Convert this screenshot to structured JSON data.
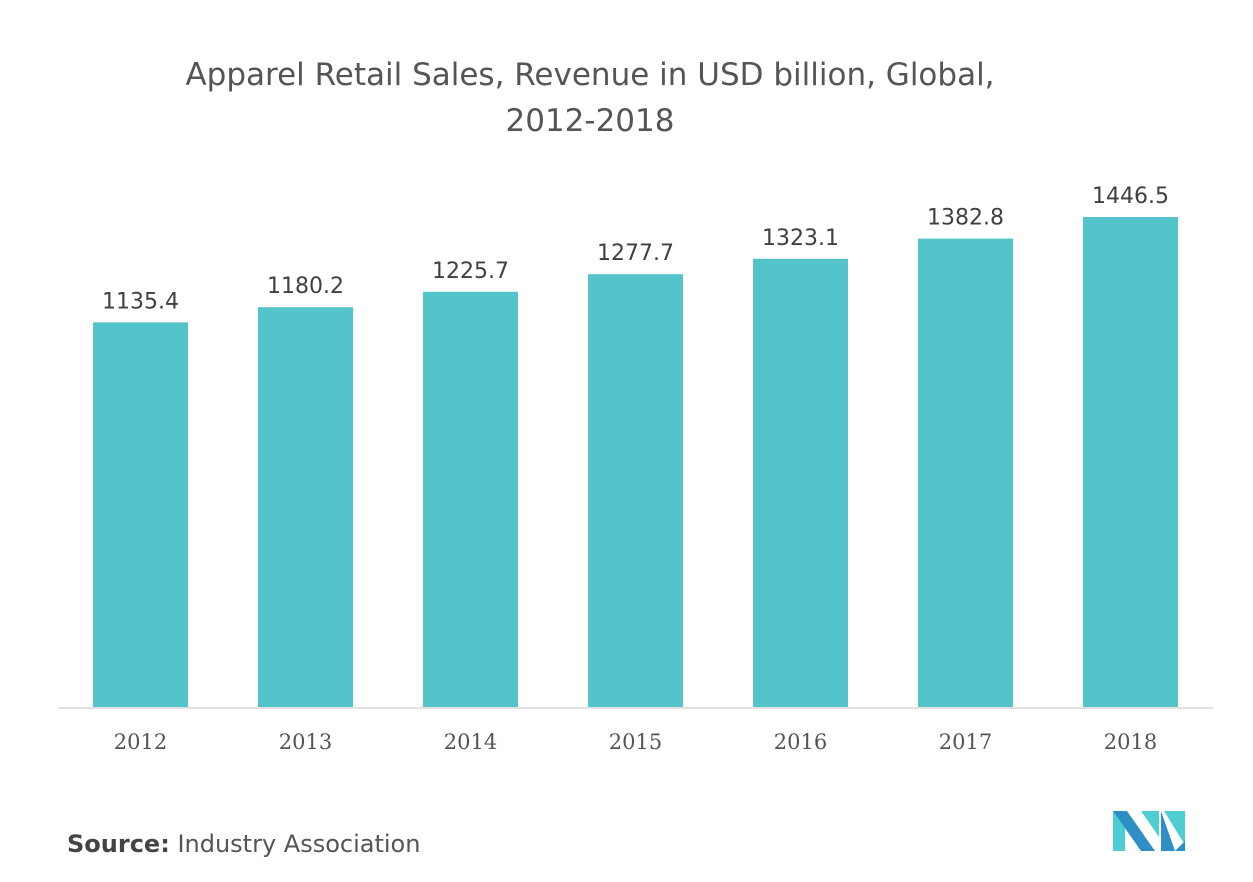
{
  "chart_data": {
    "type": "bar",
    "title": "Apparel Retail Sales, Revenue in USD billion, Global, 2012-2018",
    "title_lines": [
      "Apparel Retail Sales, Revenue in USD billion, Global,",
      "2012-2018"
    ],
    "categories": [
      "2012",
      "2013",
      "2014",
      "2015",
      "2016",
      "2017",
      "2018"
    ],
    "values": [
      1135.4,
      1180.2,
      1225.7,
      1277.7,
      1323.1,
      1382.8,
      1446.5
    ],
    "value_labels": [
      "1135.4",
      "1180.2",
      "1225.7",
      "1277.7",
      "1323.1",
      "1382.8",
      "1446.5"
    ],
    "xlabel": "",
    "ylabel": "",
    "ylim": [
      0,
      1446.5
    ],
    "grid": false,
    "bar_color": "#53C4CA"
  },
  "footer": {
    "source_label": "Source:",
    "source_text": "Industry Association"
  },
  "logo": {
    "icon": "mordor-intelligence-logo",
    "colors": [
      "#2E8FC4",
      "#4ECDD3"
    ]
  }
}
